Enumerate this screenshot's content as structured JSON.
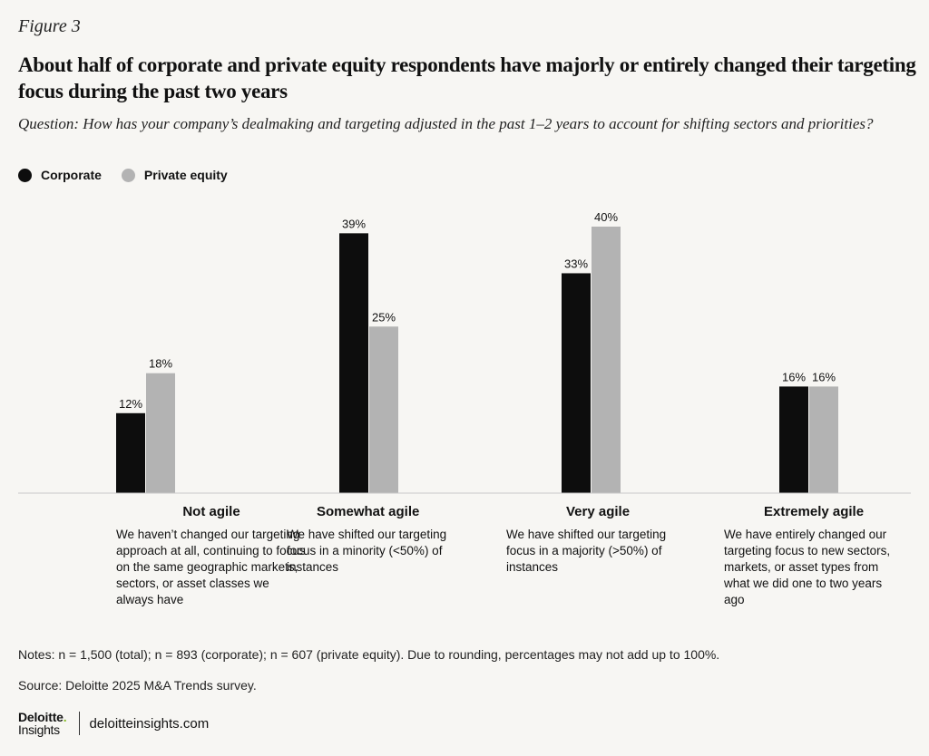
{
  "figure_label": "Figure 3",
  "title": "About half of corporate and private equity respondents have majorly or entirely changed their targeting focus during the past two years",
  "question": "Question: How has your company’s dealmaking and targeting adjusted in the past 1–2 years to account for shifting sectors and priorities?",
  "legend": [
    {
      "label": "Corporate",
      "color": "#0d0d0d"
    },
    {
      "label": "Private equity",
      "color": "#b3b3b3"
    }
  ],
  "chart_data": {
    "type": "bar",
    "categories": [
      "Not agile",
      "Somewhat agile",
      "Very agile",
      "Extremely agile"
    ],
    "descriptions": [
      "We haven’t changed our targeting approach at all, continuing to focus on the same geographic markets, sectors, or asset classes we always have",
      "We have shifted our targeting focus in a minority (<50%) of instances",
      "We have shifted our targeting focus in a majority (>50%) of instances",
      "We have entirely changed our targeting focus to new sectors, markets, or asset types from what we did one to two years ago"
    ],
    "series": [
      {
        "name": "Corporate",
        "values": [
          12,
          39,
          33,
          16
        ],
        "labels": [
          "12%",
          "39%",
          "33%",
          "16%"
        ],
        "color": "#0d0d0d"
      },
      {
        "name": "Private equity",
        "values": [
          18,
          25,
          40,
          16
        ],
        "labels": [
          "18%",
          "25%",
          "40%",
          "16%"
        ],
        "color": "#b3b3b3"
      }
    ],
    "ylim": [
      0,
      40
    ],
    "grid": false,
    "legend_position": "top-left"
  },
  "notes": "Notes: n = 1,500 (total); n = 893 (corporate); n = 607 (private equity). Due to rounding, percentages may not add up to 100%.",
  "source": "Source: Deloitte 2025 M&A Trends survey.",
  "footer": {
    "brand_top": "Deloitte",
    "brand_dot": ".",
    "brand_bottom": "Insights",
    "site": "deloitteinsights.com"
  }
}
